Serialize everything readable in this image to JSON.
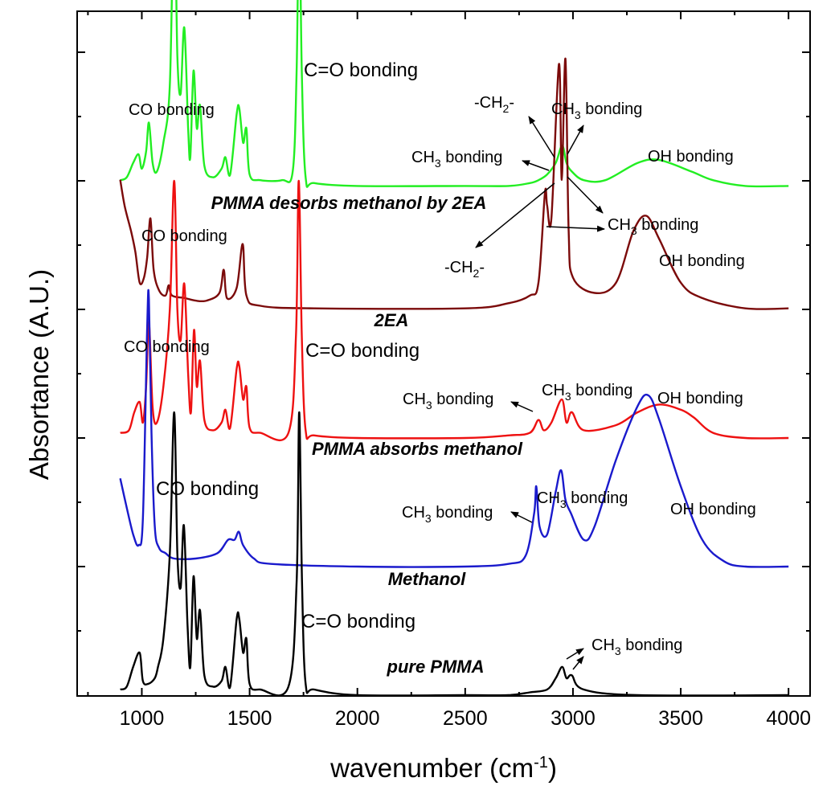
{
  "chart_data": {
    "type": "line",
    "xlabel": "wavenumber (cm",
    "xlabel_sup": "-1",
    "xlabel_end": ")",
    "ylabel": "Absortance (A.U.)",
    "xlim": [
      700,
      4100
    ],
    "x_ticks": [
      1000,
      1500,
      2000,
      2500,
      3000,
      3500,
      4000
    ],
    "y_tick_labels_shown": false,
    "grid": false,
    "legend": "none",
    "series": [
      {
        "name": "PMMA desorbs methanol by 2EA",
        "color": "#22ee22",
        "baseline": 0.74,
        "scale": 0.56,
        "points": [
          [
            900,
            0.02
          ],
          [
            930,
            0.03
          ],
          [
            960,
            0.08
          ],
          [
            985,
            0.11
          ],
          [
            1000,
            0.06
          ],
          [
            1020,
            0.12
          ],
          [
            1033,
            0.22
          ],
          [
            1050,
            0.08
          ],
          [
            1070,
            0.05
          ],
          [
            1100,
            0.15
          ],
          [
            1130,
            0.35
          ],
          [
            1150,
            1.0
          ],
          [
            1165,
            0.45
          ],
          [
            1180,
            0.32
          ],
          [
            1197,
            0.55
          ],
          [
            1215,
            0.2
          ],
          [
            1225,
            0.1
          ],
          [
            1240,
            0.4
          ],
          [
            1255,
            0.2
          ],
          [
            1270,
            0.28
          ],
          [
            1290,
            0.07
          ],
          [
            1330,
            0.03
          ],
          [
            1370,
            0.06
          ],
          [
            1388,
            0.1
          ],
          [
            1410,
            0.04
          ],
          [
            1440,
            0.25
          ],
          [
            1452,
            0.27
          ],
          [
            1470,
            0.15
          ],
          [
            1485,
            0.2
          ],
          [
            1500,
            0.04
          ],
          [
            1550,
            0.02
          ],
          [
            1650,
            0.02
          ],
          [
            1700,
            0.05
          ],
          [
            1718,
            0.4
          ],
          [
            1730,
            0.95
          ],
          [
            1742,
            0.4
          ],
          [
            1760,
            0.03
          ],
          [
            1800,
            0.01
          ],
          [
            2000,
            0.0
          ],
          [
            2500,
            0.0
          ],
          [
            2700,
            0.0
          ],
          [
            2800,
            0.01
          ],
          [
            2840,
            0.02
          ],
          [
            2880,
            0.04
          ],
          [
            2920,
            0.08
          ],
          [
            2950,
            0.14
          ],
          [
            2970,
            0.08
          ],
          [
            2995,
            0.05
          ],
          [
            3050,
            0.02
          ],
          [
            3150,
            0.02
          ],
          [
            3300,
            0.08
          ],
          [
            3400,
            0.09
          ],
          [
            3550,
            0.05
          ],
          [
            3650,
            0.02
          ],
          [
            3800,
            0.0
          ],
          [
            4000,
            0.0
          ]
        ]
      },
      {
        "name": "2EA",
        "color": "#7b0a0a",
        "baseline": 0.502,
        "scale": 0.5,
        "points": [
          [
            900,
            0.5
          ],
          [
            920,
            0.4
          ],
          [
            950,
            0.3
          ],
          [
            970,
            0.22
          ],
          [
            990,
            0.1
          ],
          [
            1010,
            0.12
          ],
          [
            1025,
            0.2
          ],
          [
            1040,
            0.35
          ],
          [
            1055,
            0.15
          ],
          [
            1080,
            0.07
          ],
          [
            1110,
            0.05
          ],
          [
            1125,
            0.09
          ],
          [
            1140,
            0.05
          ],
          [
            1200,
            0.04
          ],
          [
            1250,
            0.03
          ],
          [
            1300,
            0.03
          ],
          [
            1360,
            0.06
          ],
          [
            1380,
            0.15
          ],
          [
            1395,
            0.04
          ],
          [
            1440,
            0.08
          ],
          [
            1468,
            0.25
          ],
          [
            1485,
            0.05
          ],
          [
            1550,
            0.01
          ],
          [
            1800,
            0.0
          ],
          [
            2500,
            0.0
          ],
          [
            2700,
            0.02
          ],
          [
            2800,
            0.05
          ],
          [
            2840,
            0.1
          ],
          [
            2870,
            0.45
          ],
          [
            2880,
            0.4
          ],
          [
            2900,
            0.35
          ],
          [
            2935,
            0.95
          ],
          [
            2948,
            0.5
          ],
          [
            2965,
            0.97
          ],
          [
            2980,
            0.3
          ],
          [
            3000,
            0.12
          ],
          [
            3100,
            0.06
          ],
          [
            3200,
            0.1
          ],
          [
            3280,
            0.3
          ],
          [
            3340,
            0.36
          ],
          [
            3400,
            0.27
          ],
          [
            3500,
            0.1
          ],
          [
            3600,
            0.04
          ],
          [
            3800,
            0.0
          ],
          [
            4000,
            0.0
          ]
        ]
      },
      {
        "name": "PMMA absorbs methanol",
        "color": "#ee1111",
        "baseline": 0.25,
        "scale": 0.5,
        "points": [
          [
            900,
            0.02
          ],
          [
            940,
            0.03
          ],
          [
            965,
            0.1
          ],
          [
            990,
            0.14
          ],
          [
            1005,
            0.06
          ],
          [
            1020,
            0.2
          ],
          [
            1033,
            0.45
          ],
          [
            1050,
            0.12
          ],
          [
            1070,
            0.06
          ],
          [
            1100,
            0.2
          ],
          [
            1130,
            0.5
          ],
          [
            1150,
            1.0
          ],
          [
            1165,
            0.5
          ],
          [
            1180,
            0.38
          ],
          [
            1197,
            0.6
          ],
          [
            1215,
            0.25
          ],
          [
            1228,
            0.1
          ],
          [
            1242,
            0.42
          ],
          [
            1255,
            0.2
          ],
          [
            1270,
            0.3
          ],
          [
            1290,
            0.07
          ],
          [
            1330,
            0.03
          ],
          [
            1370,
            0.06
          ],
          [
            1388,
            0.11
          ],
          [
            1410,
            0.04
          ],
          [
            1440,
            0.27
          ],
          [
            1452,
            0.28
          ],
          [
            1470,
            0.15
          ],
          [
            1485,
            0.2
          ],
          [
            1500,
            0.04
          ],
          [
            1550,
            0.02
          ],
          [
            1680,
            0.02
          ],
          [
            1715,
            0.4
          ],
          [
            1728,
            1.0
          ],
          [
            1742,
            0.4
          ],
          [
            1760,
            0.03
          ],
          [
            1800,
            0.01
          ],
          [
            2000,
            0.0
          ],
          [
            2500,
            0.0
          ],
          [
            2700,
            0.01
          ],
          [
            2800,
            0.02
          ],
          [
            2840,
            0.07
          ],
          [
            2865,
            0.03
          ],
          [
            2900,
            0.06
          ],
          [
            2948,
            0.15
          ],
          [
            2970,
            0.06
          ],
          [
            2995,
            0.1
          ],
          [
            3050,
            0.03
          ],
          [
            3200,
            0.05
          ],
          [
            3300,
            0.1
          ],
          [
            3400,
            0.13
          ],
          [
            3500,
            0.11
          ],
          [
            3560,
            0.08
          ],
          [
            3650,
            0.02
          ],
          [
            3800,
            0.0
          ],
          [
            4000,
            0.0
          ]
        ]
      },
      {
        "name": "Methanol",
        "color": "#1a1acc",
        "baseline": 0.0,
        "scale": 0.52,
        "points": [
          [
            900,
            0.33
          ],
          [
            930,
            0.22
          ],
          [
            960,
            0.12
          ],
          [
            985,
            0.08
          ],
          [
            1005,
            0.18
          ],
          [
            1025,
            0.9
          ],
          [
            1033,
            1.0
          ],
          [
            1045,
            0.5
          ],
          [
            1060,
            0.15
          ],
          [
            1080,
            0.07
          ],
          [
            1110,
            0.05
          ],
          [
            1150,
            0.03
          ],
          [
            1250,
            0.03
          ],
          [
            1350,
            0.05
          ],
          [
            1400,
            0.1
          ],
          [
            1430,
            0.1
          ],
          [
            1450,
            0.13
          ],
          [
            1470,
            0.08
          ],
          [
            1520,
            0.03
          ],
          [
            1600,
            0.01
          ],
          [
            2000,
            0.0
          ],
          [
            2500,
            0.0
          ],
          [
            2700,
            0.01
          ],
          [
            2780,
            0.04
          ],
          [
            2820,
            0.2
          ],
          [
            2830,
            0.3
          ],
          [
            2845,
            0.15
          ],
          [
            2880,
            0.12
          ],
          [
            2920,
            0.28
          ],
          [
            2945,
            0.36
          ],
          [
            2965,
            0.25
          ],
          [
            2990,
            0.2
          ],
          [
            3050,
            0.1
          ],
          [
            3100,
            0.15
          ],
          [
            3200,
            0.4
          ],
          [
            3300,
            0.6
          ],
          [
            3350,
            0.64
          ],
          [
            3400,
            0.55
          ],
          [
            3500,
            0.3
          ],
          [
            3600,
            0.1
          ],
          [
            3700,
            0.02
          ],
          [
            3800,
            0.0
          ],
          [
            4000,
            0.0
          ]
        ]
      },
      {
        "name": "pure PMMA",
        "color": "#000000",
        "baseline": -0.25,
        "scale": 0.55,
        "points": [
          [
            900,
            0.02
          ],
          [
            930,
            0.03
          ],
          [
            960,
            0.1
          ],
          [
            990,
            0.15
          ],
          [
            1005,
            0.05
          ],
          [
            1030,
            0.04
          ],
          [
            1060,
            0.06
          ],
          [
            1075,
            0.1
          ],
          [
            1100,
            0.2
          ],
          [
            1130,
            0.5
          ],
          [
            1150,
            1.0
          ],
          [
            1165,
            0.5
          ],
          [
            1180,
            0.38
          ],
          [
            1195,
            0.6
          ],
          [
            1212,
            0.25
          ],
          [
            1225,
            0.1
          ],
          [
            1240,
            0.42
          ],
          [
            1255,
            0.2
          ],
          [
            1270,
            0.3
          ],
          [
            1290,
            0.07
          ],
          [
            1330,
            0.03
          ],
          [
            1370,
            0.05
          ],
          [
            1388,
            0.1
          ],
          [
            1410,
            0.03
          ],
          [
            1440,
            0.27
          ],
          [
            1452,
            0.27
          ],
          [
            1470,
            0.15
          ],
          [
            1485,
            0.2
          ],
          [
            1500,
            0.04
          ],
          [
            1550,
            0.02
          ],
          [
            1680,
            0.03
          ],
          [
            1718,
            0.4
          ],
          [
            1730,
            1.0
          ],
          [
            1743,
            0.4
          ],
          [
            1760,
            0.04
          ],
          [
            1800,
            0.02
          ],
          [
            2000,
            0.0
          ],
          [
            2500,
            0.0
          ],
          [
            2700,
            0.0
          ],
          [
            2800,
            0.01
          ],
          [
            2880,
            0.02
          ],
          [
            2920,
            0.06
          ],
          [
            2950,
            0.1
          ],
          [
            2970,
            0.06
          ],
          [
            2995,
            0.07
          ],
          [
            3050,
            0.02
          ],
          [
            3300,
            0.0
          ],
          [
            4000,
            0.0
          ]
        ]
      }
    ],
    "series_labels": [
      "PMMA desorbs methanol by 2EA",
      "2EA",
      "PMMA absorbs methanol",
      "Methanol",
      "pure PMMA"
    ],
    "annotations": {
      "green": {
        "co": "CO bonding",
        "c_o": "C=O bonding",
        "ch2": "-CH",
        "ch2_sub": "2",
        "ch2_end": "-",
        "ch3_right": "CH",
        "ch3_right_sub": "3",
        "ch3_right_end": " bonding",
        "ch3_left": "CH",
        "ch3_left_sub": "3",
        "ch3_left_end": " bonding",
        "oh": "OH bonding"
      },
      "maroon": {
        "co": "CO bonding",
        "ch3": "CH",
        "ch3_sub": "3",
        "ch3_end": " bonding",
        "ch2": "-CH",
        "ch2_sub": "2",
        "ch2_end": "-",
        "oh": "OH bonding"
      },
      "red": {
        "co": "CO bonding",
        "c_o": "C=O bonding",
        "ch3_left": "CH",
        "ch3_left_sub": "3",
        "ch3_left_end": " bonding",
        "ch3_right": "CH",
        "ch3_right_sub": "3",
        "ch3_right_end": " bonding",
        "oh": "OH bonding"
      },
      "blue": {
        "co": "CO bonding",
        "ch3_left": "CH",
        "ch3_left_sub": "3",
        "ch3_left_end": " bonding",
        "ch3_right": "CH",
        "ch3_right_sub": "3",
        "ch3_right_end": " bonding",
        "oh": "OH bonding"
      },
      "black": {
        "c_o": "C=O bonding",
        "ch3": "CH",
        "ch3_sub": "3",
        "ch3_end": " bonding"
      }
    }
  }
}
